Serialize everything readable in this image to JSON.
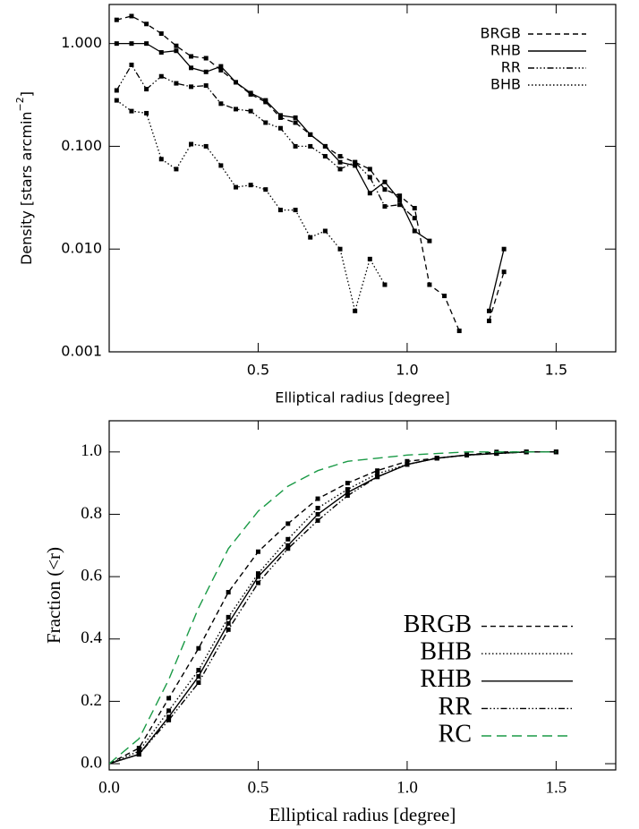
{
  "chart_data": [
    {
      "type": "line",
      "log_y": true,
      "legend": "upper right",
      "xlabel": "Elliptical radius [degree]",
      "ylabel": "Density [stars arcmin",
      "ylabel_sup": "−2",
      "ylabel_end": "]",
      "xlim": [
        0,
        1.7
      ],
      "ylim": [
        0.001,
        2.4
      ],
      "xticks": [
        0.5,
        {
          "value": 1.0,
          "label": "1.0"
        },
        1.5
      ],
      "yticks": [
        {
          "value": 0.001,
          "label": "0.001"
        },
        {
          "value": 0.01,
          "label": "0.010"
        },
        {
          "value": 0.1,
          "label": "0.100"
        },
        {
          "value": 1,
          "label": "1.000"
        }
      ],
      "x": [
        0.025,
        0.075,
        0.125,
        0.175,
        0.225,
        0.275,
        0.325,
        0.375,
        0.425,
        0.475,
        0.525,
        0.575,
        0.625,
        0.675,
        0.725,
        0.775,
        0.825,
        0.875,
        0.925,
        0.975,
        1.025,
        1.075,
        1.125,
        1.175,
        1.225,
        1.275,
        1.325
      ],
      "series": [
        {
          "name": "BRGB",
          "color": "#000000",
          "linestyle": "dashed",
          "values": [
            1.7,
            1.85,
            1.55,
            1.25,
            0.95,
            0.75,
            0.72,
            0.55,
            0.42,
            0.32,
            0.27,
            0.19,
            0.17,
            0.13,
            0.1,
            0.08,
            0.07,
            0.06,
            0.038,
            0.033,
            0.025,
            0.0045,
            0.0035,
            0.0016,
            null,
            0.002,
            0.006
          ]
        },
        {
          "name": "RHB",
          "color": "#000000",
          "linestyle": "solid",
          "values": [
            1.0,
            1.0,
            1.0,
            0.82,
            0.85,
            0.58,
            0.53,
            0.6,
            0.42,
            0.33,
            0.28,
            0.2,
            0.19,
            0.13,
            0.1,
            0.07,
            0.065,
            0.035,
            0.045,
            0.03,
            0.015,
            0.012,
            null,
            null,
            null,
            0.0025,
            0.01
          ]
        },
        {
          "name": "RR",
          "color": "#000000",
          "linestyle": "dashdotdotdot",
          "values": [
            0.35,
            0.62,
            0.36,
            0.48,
            0.41,
            0.38,
            0.39,
            0.26,
            0.23,
            0.22,
            0.17,
            0.15,
            0.1,
            0.1,
            0.08,
            0.06,
            0.07,
            0.05,
            0.026,
            0.027,
            0.02,
            null,
            null,
            null,
            null,
            null,
            null
          ]
        },
        {
          "name": "BHB",
          "color": "#000000",
          "linestyle": "dotted",
          "values": [
            0.28,
            0.22,
            0.21,
            0.075,
            0.06,
            0.105,
            0.1,
            0.065,
            0.04,
            0.042,
            0.038,
            0.024,
            0.024,
            0.013,
            0.015,
            0.01,
            0.0025,
            0.008,
            0.0045,
            null,
            null,
            null,
            null,
            null,
            null,
            null,
            null
          ]
        }
      ]
    },
    {
      "type": "line",
      "log_y": false,
      "legend": "lower right",
      "xlabel": "Elliptical radius [degree]",
      "ylabel": "Fraction (<r)",
      "xlim": [
        0,
        1.7
      ],
      "ylim": [
        -0.02,
        1.1
      ],
      "xticks": [
        {
          "value": 0,
          "label": "0.0"
        },
        0.5,
        {
          "value": 1.0,
          "label": "1.0"
        },
        1.5
      ],
      "yticks": [
        {
          "value": 0,
          "label": "0.0"
        },
        0.2,
        0.4,
        0.6,
        0.8,
        {
          "value": 1.0,
          "label": "1.0"
        }
      ],
      "x": [
        0,
        0.1,
        0.2,
        0.3,
        0.4,
        0.5,
        0.6,
        0.7,
        0.8,
        0.9,
        1.0,
        1.1,
        1.2,
        1.3,
        1.4,
        1.5
      ],
      "series": [
        {
          "name": "BRGB",
          "color": "#000000",
          "linestyle": "dashed",
          "markers": true,
          "values": [
            0,
            0.05,
            0.21,
            0.37,
            0.55,
            0.68,
            0.77,
            0.85,
            0.9,
            0.94,
            0.97,
            0.98,
            0.99,
            1.0,
            1.0,
            1.0
          ]
        },
        {
          "name": "BHB",
          "color": "#000000",
          "linestyle": "dotted",
          "markers": true,
          "values": [
            0,
            0.04,
            0.17,
            0.3,
            0.47,
            0.61,
            0.72,
            0.82,
            0.88,
            0.93,
            0.96,
            0.98,
            0.99,
            0.995,
            1.0,
            1.0
          ]
        },
        {
          "name": "RHB",
          "color": "#000000",
          "linestyle": "solid",
          "markers": true,
          "values": [
            0,
            0.03,
            0.15,
            0.28,
            0.45,
            0.6,
            0.7,
            0.8,
            0.87,
            0.92,
            0.96,
            0.98,
            0.99,
            0.995,
            1.0,
            1.0
          ]
        },
        {
          "name": "RR",
          "color": "#000000",
          "linestyle": "dashdotdotdot",
          "markers": true,
          "values": [
            0,
            0.03,
            0.14,
            0.26,
            0.43,
            0.58,
            0.69,
            0.78,
            0.86,
            0.92,
            0.96,
            0.98,
            0.99,
            0.995,
            1.0,
            1.0
          ]
        },
        {
          "name": "RC",
          "color": "#1a9a46",
          "linestyle": "longdash",
          "markers": false,
          "values": [
            0,
            0.08,
            0.27,
            0.5,
            0.69,
            0.81,
            0.89,
            0.94,
            0.97,
            0.98,
            0.99,
            0.995,
            1.0,
            1.0,
            1.0,
            1.0
          ]
        }
      ]
    }
  ]
}
